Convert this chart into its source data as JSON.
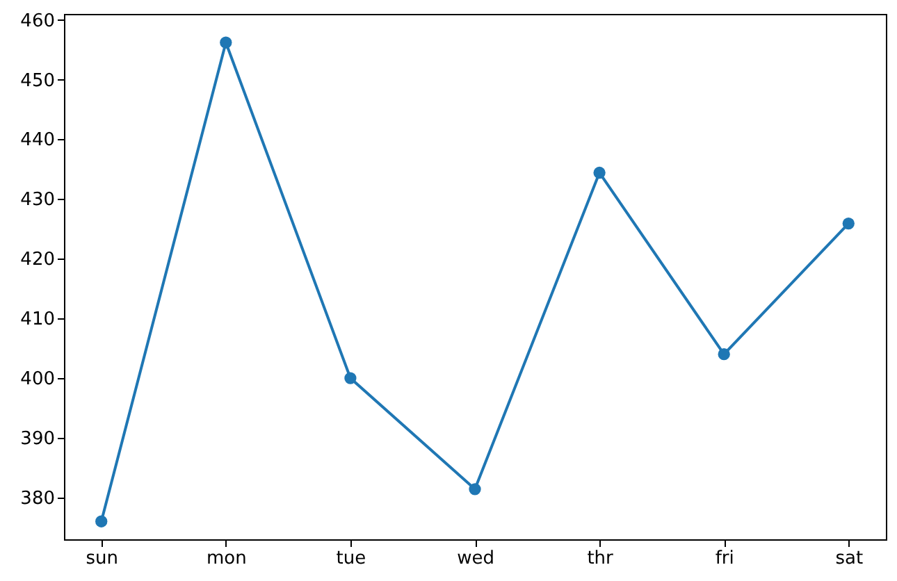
{
  "chart_data": {
    "type": "line",
    "categories": [
      "sun",
      "mon",
      "tue",
      "wed",
      "thr",
      "fri",
      "sat"
    ],
    "series": [
      {
        "color": "#1f77b4",
        "values": [
          376,
          456.2,
          400,
          381.4,
          434.4,
          404,
          425.9
        ]
      }
    ],
    "ylim": [
      373,
      461
    ],
    "yticks": [
      380,
      390,
      400,
      410,
      420,
      430,
      440,
      450,
      460
    ],
    "grid": false,
    "marker": "circle",
    "line_style": "solid"
  }
}
